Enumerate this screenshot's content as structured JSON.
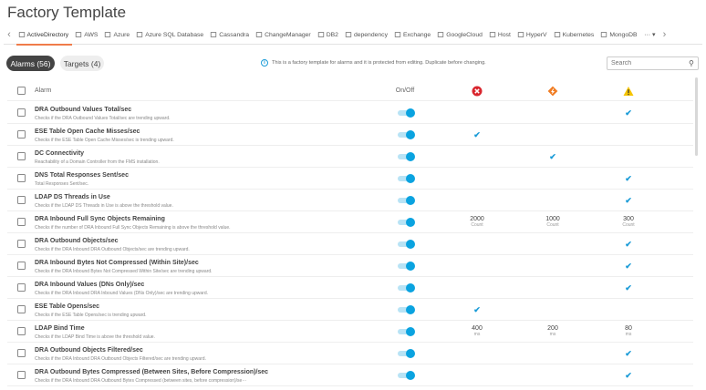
{
  "title": "Factory Template",
  "tabs": [
    "ActiveDirectory",
    "AWS",
    "Azure",
    "Azure SQL Database",
    "Cassandra",
    "ChangeManager",
    "DB2",
    "dependency",
    "Exchange",
    "GoogleCloud",
    "Host",
    "HyperV",
    "Kubernetes",
    "MongoDB"
  ],
  "active_tab": "ActiveDirectory",
  "more_label": "··· ▾",
  "chips": {
    "alarms": "Alarms (56)",
    "targets": "Targets (4)"
  },
  "info_text": "This is a factory template for alarms and it is protected from editing. Duplicate before changing.",
  "search": {
    "placeholder": "Search"
  },
  "table": {
    "headers": {
      "alarm": "Alarm",
      "onoff": "On/Off",
      "critical": "critical-icon",
      "major": "major-icon",
      "warning": "warning-icon"
    },
    "rows": [
      {
        "name": "DRA Outbound Values Total/sec",
        "desc": "Checks if the DRA Outbound Values Total/sec are trending upward.",
        "on": true,
        "cells": [
          null,
          null,
          "check"
        ]
      },
      {
        "name": "ESE Table Open Cache Misses/sec",
        "desc": "Checks if the ESE Table Open Cache Misses/sec is trending upward.",
        "on": true,
        "cells": [
          "check",
          null,
          null
        ]
      },
      {
        "name": "DC Connectivity",
        "desc": "Reachability of a Domain Controller from the FMS installation.",
        "on": true,
        "cells": [
          null,
          "check",
          null
        ]
      },
      {
        "name": "DNS Total Responses Sent/sec",
        "desc": "Total Responses Sent/sec.",
        "on": true,
        "cells": [
          null,
          null,
          "check"
        ]
      },
      {
        "name": "LDAP DS Threads in Use",
        "desc": "Checks if the LDAP DS Threads in Use is above the threshold value.",
        "on": true,
        "cells": [
          null,
          null,
          "check"
        ]
      },
      {
        "name": "DRA Inbound Full Sync Objects Remaining",
        "desc": "Checks if the number of DRA Inbound Full Sync Objects Remaining is above the threshold value.",
        "on": true,
        "cells": [
          {
            "value": "2000",
            "unit": "Count"
          },
          {
            "value": "1000",
            "unit": "Count"
          },
          {
            "value": "300",
            "unit": "Count"
          }
        ]
      },
      {
        "name": "DRA Outbound Objects/sec",
        "desc": "Checks if the DRA Inbound DRA Outbound Objects/sec are trending upward.",
        "on": true,
        "cells": [
          null,
          null,
          "check"
        ]
      },
      {
        "name": "DRA Inbound Bytes Not Compressed (Within Site)/sec",
        "desc": "Checks if the DRA Inbound Bytes Not Compressed Within Site/sec are trending upward.",
        "on": true,
        "cells": [
          null,
          null,
          "check"
        ]
      },
      {
        "name": "DRA Inbound Values (DNs Only)/sec",
        "desc": "Checks if the DRA Inbound DRA Inbound Values (DNs Only)/sec are trending upward.",
        "on": true,
        "cells": [
          null,
          null,
          "check"
        ]
      },
      {
        "name": "ESE Table Opens/sec",
        "desc": "Checks if the ESE Table Opens/sec is trending upward.",
        "on": true,
        "cells": [
          "check",
          null,
          null
        ]
      },
      {
        "name": "LDAP Bind Time",
        "desc": "Checks if the LDAP Bind Time is above the threshold value.",
        "on": true,
        "cells": [
          {
            "value": "400",
            "unit": "ms"
          },
          {
            "value": "200",
            "unit": "ms"
          },
          {
            "value": "80",
            "unit": "ms"
          }
        ]
      },
      {
        "name": "DRA Outbound Objects Filtered/sec",
        "desc": "Checks if the DRA Inbound DRA Outbound Objects Filtered/sec are trending upward.",
        "on": true,
        "cells": [
          null,
          null,
          "check"
        ]
      },
      {
        "name": "DRA Outbound Bytes Compressed (Between Sites, Before Compression)/sec",
        "desc": "Checks if the DRA Inbound DRA Outbound Bytes Compressed (between sites, before compression)/se···",
        "on": true,
        "cells": [
          null,
          null,
          "check"
        ]
      }
    ]
  },
  "colors": {
    "accent": "#0aa3e0",
    "tab_underline": "#f07c4a",
    "critical": "#d9262e",
    "major": "#f07c22",
    "warning": "#f5c400"
  }
}
